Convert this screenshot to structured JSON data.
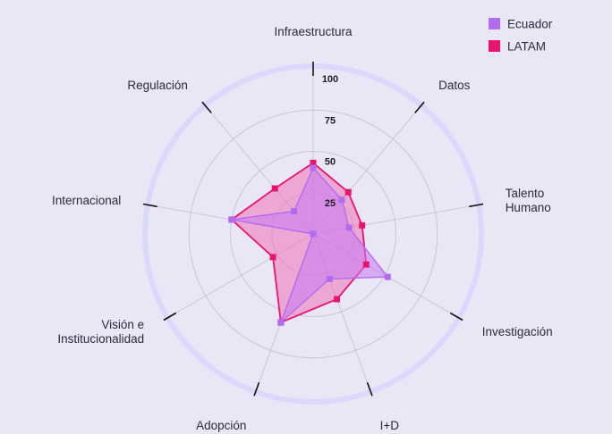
{
  "chart_data": {
    "type": "radar",
    "axes": [
      "Infraestructura",
      "Datos",
      "Talento Humano",
      "Investigación",
      "I+D",
      "Adopción",
      "Visión e Institucionalidad",
      "Internacional",
      "Regulación"
    ],
    "axis_label_lines": [
      [
        "Infraestructura"
      ],
      [
        "Datos"
      ],
      [
        "Talento",
        "Humano"
      ],
      [
        "Investigación"
      ],
      [
        "I+D"
      ],
      [
        "Adopción"
      ],
      [
        "Visión e",
        "Institucionalidad"
      ],
      [
        "Internacional"
      ],
      [
        "Regulación"
      ]
    ],
    "rlim": [
      0,
      100
    ],
    "ticks": [
      25,
      50,
      75,
      100
    ],
    "tick_labels": [
      "25",
      "50",
      "75",
      "100"
    ],
    "series": [
      {
        "name": "Ecuador",
        "color": "#b26cf0",
        "fill": "#c879f2",
        "values": [
          40,
          27,
          22,
          52,
          29,
          57,
          0,
          50,
          18
        ]
      },
      {
        "name": "LATAM",
        "color": "#e8146e",
        "fill": "#f06ab0",
        "values": [
          43,
          33,
          30,
          37,
          42,
          57,
          28,
          50,
          36
        ]
      }
    ],
    "legend": {
      "position": "top-right",
      "items": [
        {
          "label": "Ecuador",
          "color": "#b26cf0"
        },
        {
          "label": "LATAM",
          "color": "#e8146e"
        }
      ]
    },
    "grid": true
  }
}
